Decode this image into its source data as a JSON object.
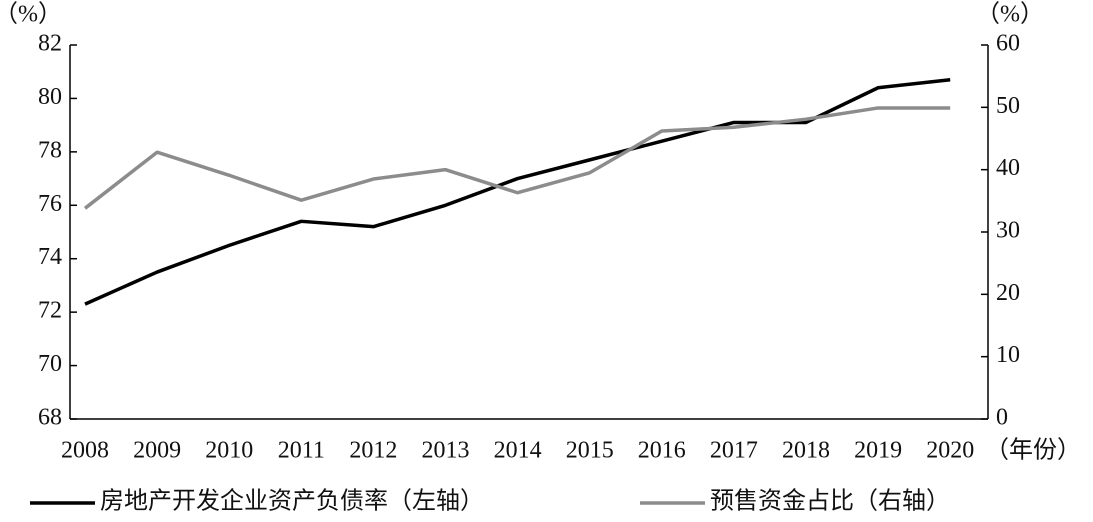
{
  "chart_data": {
    "type": "line",
    "ylabel": "（%）",
    "y2label": "（%）",
    "xlabel": "（年份）",
    "categories": [
      "2008",
      "2009",
      "2010",
      "2011",
      "2012",
      "2013",
      "2014",
      "2015",
      "2016",
      "2017",
      "2018",
      "2019",
      "2020"
    ],
    "series": [
      {
        "name": "房地产开发企业资产负债率（左轴）",
        "color": "#000000",
        "axis": "y",
        "values": [
          72.3,
          73.5,
          74.5,
          75.4,
          75.2,
          76.0,
          77.0,
          77.7,
          78.4,
          79.1,
          79.1,
          80.4,
          80.7
        ]
      },
      {
        "name": "预售资金占比（右轴）",
        "color": "#8c8c8c",
        "axis": "y2",
        "values": [
          33.8,
          42.8,
          39.1,
          35.1,
          38.5,
          40.0,
          36.3,
          39.5,
          46.2,
          46.8,
          48.1,
          49.9,
          49.9
        ]
      }
    ],
    "ylim": [
      68,
      82
    ],
    "yticks": [
      68,
      70,
      72,
      74,
      76,
      78,
      80,
      82
    ],
    "y2lim": [
      0,
      60
    ],
    "y2ticks": [
      0,
      10,
      20,
      30,
      40,
      50,
      60
    ],
    "grid": false
  }
}
